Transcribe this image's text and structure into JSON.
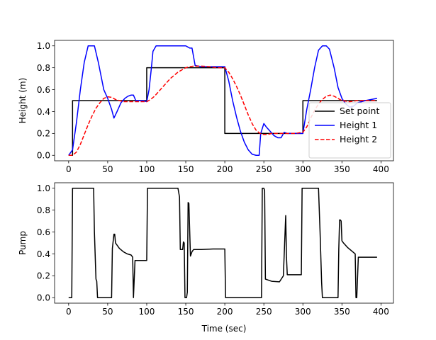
{
  "chart_data": [
    {
      "type": "line",
      "title": "",
      "xlabel": "",
      "ylabel": "Height (m)",
      "xlim": [
        -18,
        416
      ],
      "ylim": [
        -0.05,
        1.05
      ],
      "xticks": [
        "0",
        "50",
        "100",
        "150",
        "200",
        "250",
        "300",
        "350",
        "400"
      ],
      "yticks": [
        "0.0",
        "0.2",
        "0.4",
        "0.6",
        "0.8",
        "1.0"
      ],
      "legend_position": "lower-right",
      "series": [
        {
          "name": "Set point",
          "color": "#000000",
          "style": "solid",
          "x": [
            0,
            5,
            5,
            100,
            100,
            200,
            200,
            300,
            300,
            395
          ],
          "y": [
            0,
            0,
            0.5,
            0.5,
            0.8,
            0.8,
            0.2,
            0.2,
            0.5,
            0.5
          ]
        },
        {
          "name": "Height 1",
          "color": "#0000ff",
          "style": "solid",
          "x": [
            0,
            5,
            10,
            15,
            20,
            25,
            27,
            30,
            33,
            38,
            45,
            50,
            55,
            58,
            62,
            67,
            72,
            76,
            80,
            83,
            86,
            90,
            95,
            100,
            103,
            106,
            108,
            112,
            116,
            120,
            125,
            130,
            140,
            150,
            155,
            158,
            162,
            170,
            180,
            190,
            200,
            205,
            210,
            215,
            220,
            225,
            230,
            235,
            240,
            244,
            246,
            250,
            253,
            258,
            263,
            268,
            272,
            276,
            280,
            285,
            290,
            295,
            300,
            305,
            310,
            315,
            320,
            325,
            330,
            334,
            340,
            345,
            350,
            355,
            360,
            365,
            370,
            380,
            395
          ],
          "y": [
            0,
            0.05,
            0.3,
            0.6,
            0.85,
            1.0,
            1.0,
            1.0,
            1.0,
            0.85,
            0.6,
            0.52,
            0.42,
            0.34,
            0.4,
            0.48,
            0.52,
            0.54,
            0.55,
            0.55,
            0.5,
            0.5,
            0.5,
            0.49,
            0.6,
            0.8,
            0.95,
            1.0,
            1.0,
            1.0,
            1.0,
            1.0,
            1.0,
            1.0,
            0.98,
            0.98,
            0.82,
            0.81,
            0.81,
            0.81,
            0.81,
            0.68,
            0.5,
            0.35,
            0.22,
            0.12,
            0.05,
            0.01,
            0.0,
            0.0,
            0.2,
            0.29,
            0.26,
            0.22,
            0.18,
            0.16,
            0.16,
            0.21,
            0.2,
            0.2,
            0.2,
            0.2,
            0.2,
            0.42,
            0.6,
            0.8,
            0.96,
            1.0,
            1.0,
            0.97,
            0.8,
            0.62,
            0.52,
            0.47,
            0.44,
            0.45,
            0.48,
            0.5,
            0.52
          ]
        },
        {
          "name": "Height 2",
          "color": "#ff0000",
          "style": "dashed",
          "x": [
            0,
            5,
            10,
            15,
            20,
            25,
            30,
            35,
            40,
            45,
            50,
            55,
            60,
            65,
            70,
            80,
            90,
            100,
            105,
            110,
            115,
            120,
            125,
            130,
            135,
            140,
            145,
            150,
            155,
            160,
            170,
            180,
            190,
            200,
            205,
            210,
            215,
            220,
            225,
            230,
            235,
            240,
            245,
            250,
            255,
            260,
            270,
            280,
            290,
            300,
            305,
            310,
            315,
            320,
            325,
            330,
            335,
            340,
            345,
            350,
            360,
            370,
            380,
            395
          ],
          "y": [
            0,
            0.0,
            0.03,
            0.1,
            0.19,
            0.28,
            0.36,
            0.43,
            0.48,
            0.52,
            0.535,
            0.53,
            0.51,
            0.5,
            0.49,
            0.49,
            0.49,
            0.49,
            0.51,
            0.54,
            0.58,
            0.62,
            0.66,
            0.7,
            0.73,
            0.76,
            0.78,
            0.8,
            0.81,
            0.815,
            0.815,
            0.81,
            0.8,
            0.8,
            0.76,
            0.7,
            0.63,
            0.55,
            0.46,
            0.37,
            0.29,
            0.23,
            0.2,
            0.19,
            0.19,
            0.2,
            0.2,
            0.2,
            0.2,
            0.21,
            0.26,
            0.34,
            0.41,
            0.47,
            0.51,
            0.54,
            0.55,
            0.54,
            0.52,
            0.5,
            0.49,
            0.5,
            0.5,
            0.5
          ]
        }
      ]
    },
    {
      "type": "line",
      "title": "",
      "xlabel": "Time (sec)",
      "ylabel": "Pump",
      "xlim": [
        -18,
        416
      ],
      "ylim": [
        -0.05,
        1.05
      ],
      "xticks": [
        "0",
        "50",
        "100",
        "150",
        "200",
        "250",
        "300",
        "350",
        "400"
      ],
      "yticks": [
        "0.0",
        "0.2",
        "0.4",
        "0.6",
        "0.8",
        "1.0"
      ],
      "series": [
        {
          "name": "",
          "color": "#000000",
          "style": "solid",
          "x": [
            0,
            4,
            5,
            6,
            32,
            33,
            35,
            36,
            37,
            46,
            55,
            56,
            58,
            59,
            60,
            65,
            70,
            75,
            80,
            82,
            83,
            85,
            86,
            92,
            100,
            101,
            110,
            140,
            142,
            143,
            146,
            147,
            148,
            149,
            150,
            151,
            152,
            153,
            154,
            156,
            158,
            160,
            170,
            185,
            200,
            201,
            247,
            248,
            250,
            251,
            252,
            256,
            260,
            270,
            275,
            278,
            279,
            280,
            290,
            298,
            299,
            300,
            301,
            320,
            322,
            324,
            325,
            345,
            346,
            347,
            348,
            349,
            350,
            352,
            357,
            362,
            367,
            368,
            369,
            371,
            372,
            380,
            395
          ],
          "y": [
            0,
            0,
            1.0,
            1.0,
            1.0,
            0.6,
            0.17,
            0.15,
            0.0,
            0.0,
            0.0,
            0.45,
            0.58,
            0.58,
            0.5,
            0.45,
            0.42,
            0.4,
            0.39,
            0.37,
            0.0,
            0.34,
            0.34,
            0.34,
            0.34,
            1.0,
            1.0,
            1.0,
            0.92,
            0.44,
            0.44,
            0.51,
            0.5,
            0.0,
            0.0,
            0.0,
            0.05,
            0.87,
            0.86,
            0.38,
            0.42,
            0.44,
            0.44,
            0.445,
            0.445,
            0.0,
            0.0,
            1.0,
            1.0,
            0.98,
            0.17,
            0.16,
            0.15,
            0.145,
            0.2,
            0.75,
            0.37,
            0.21,
            0.21,
            0.21,
            1.0,
            1.0,
            1.0,
            1.0,
            0.6,
            0.14,
            0.0,
            0.0,
            0.45,
            0.71,
            0.71,
            0.7,
            0.52,
            0.5,
            0.46,
            0.43,
            0.4,
            0.0,
            0.0,
            0.37,
            0.37,
            0.37,
            0.37
          ]
        }
      ]
    }
  ]
}
